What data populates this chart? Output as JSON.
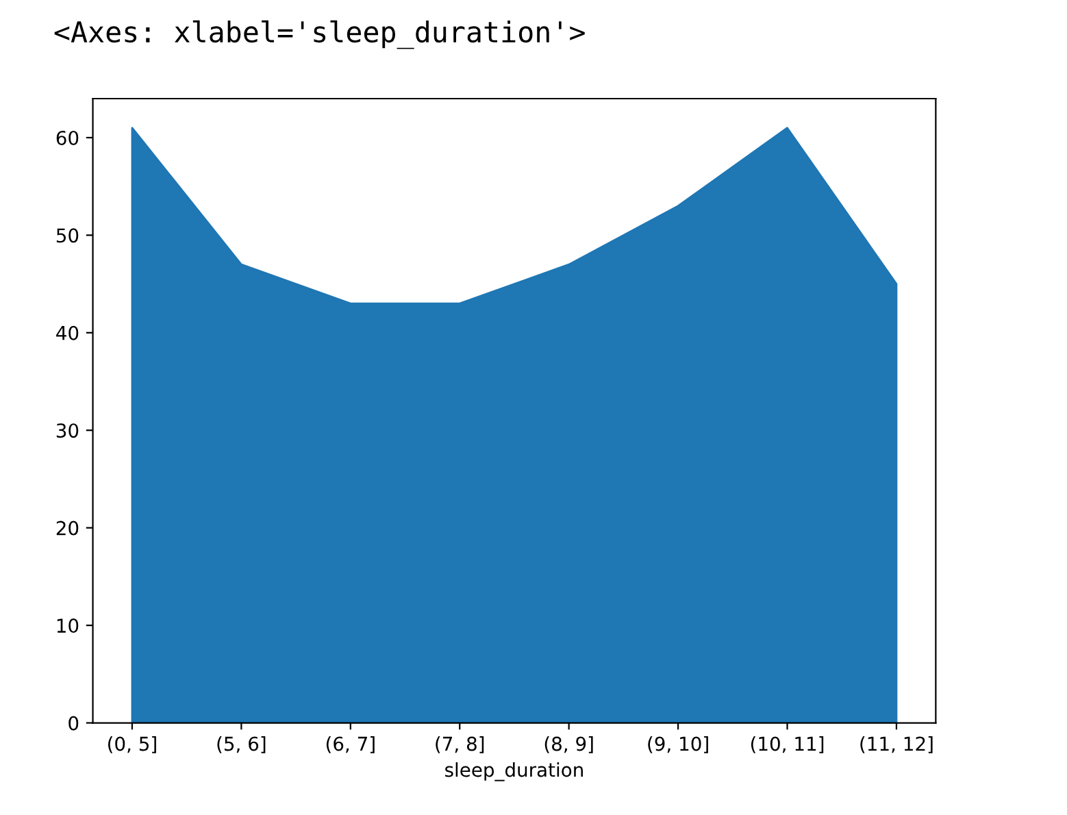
{
  "chart_data": {
    "type": "area",
    "annotations": [
      "<Axes: xlabel='sleep_duration'>"
    ],
    "xlabel": "sleep_duration",
    "categories": [
      "(0, 5]",
      "(5, 6]",
      "(6, 7]",
      "(7, 8]",
      "(8, 9]",
      "(9, 10]",
      "(10, 11]",
      "(11, 12]"
    ],
    "series": [
      {
        "color": "#1f77b4",
        "values": [
          61,
          47,
          43,
          43,
          47,
          53,
          61,
          45
        ]
      }
    ],
    "ylim": [
      0,
      64
    ],
    "yticks": [
      0,
      10,
      20,
      30,
      40,
      50,
      60
    ],
    "grid": false
  }
}
